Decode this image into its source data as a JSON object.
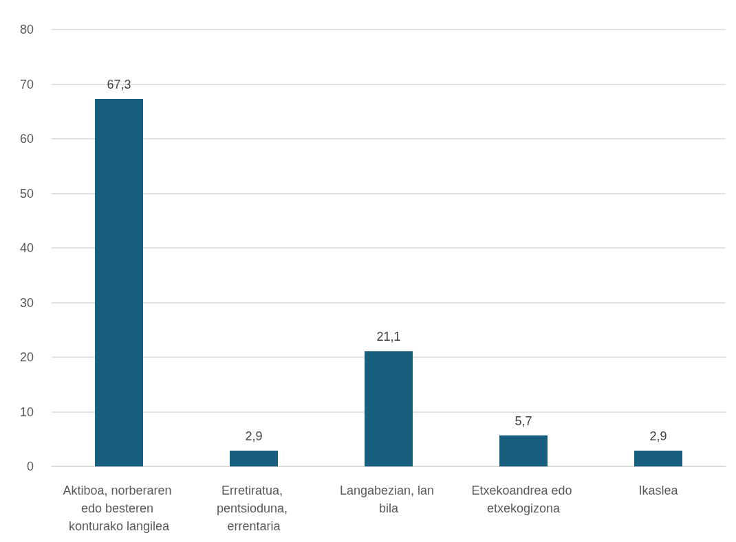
{
  "chart_data": {
    "type": "bar",
    "categories": [
      "Aktiboa, norberaren edo besteren konturako langilea",
      "Erretiratua, pentsioduna, errentaria",
      "Langabezian, lan bila",
      "Etxekoandrea edo etxekogizona",
      "Ikaslea"
    ],
    "values": [
      67.3,
      2.9,
      21.1,
      5.7,
      2.9
    ],
    "value_labels": [
      "67,3",
      "2,9",
      "21,1",
      "5,7",
      "2,9"
    ],
    "color": "#175e7f",
    "ylim": [
      0,
      80
    ],
    "yticks": [
      0,
      10,
      20,
      30,
      40,
      50,
      60,
      70,
      80
    ],
    "grid": "y"
  }
}
